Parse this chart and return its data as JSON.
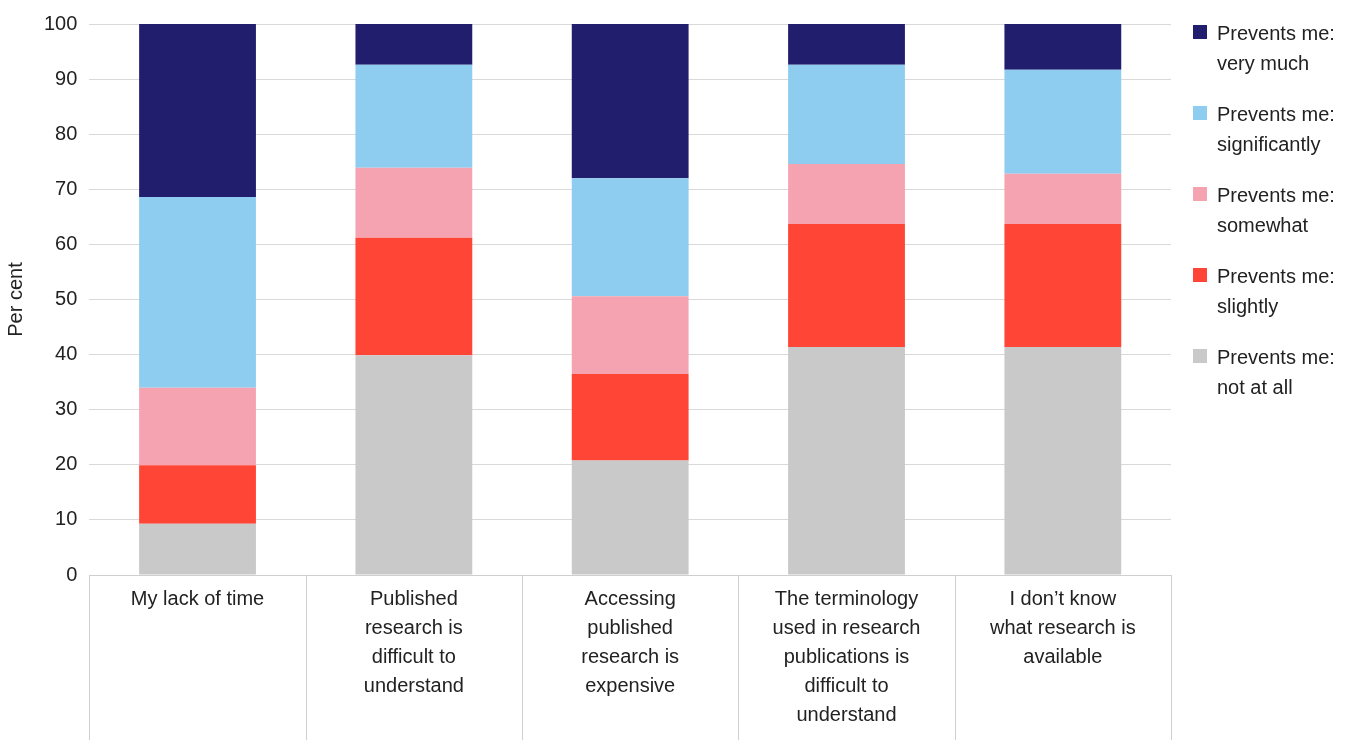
{
  "chart_data": {
    "type": "bar",
    "stacked": true,
    "ylabel": "Per cent",
    "categories": [
      "My lack of time",
      "Published research is difficult to understand",
      "Accessing published research is expensive",
      "The terminology used in research publications is difficult to understand",
      "I don’t know what research is available"
    ],
    "series": [
      {
        "name": "Prevents me: not at all",
        "color": "#c8c9c8",
        "values": [
          9.3,
          39.9,
          20.8,
          41.4,
          41.4
        ]
      },
      {
        "name": "Prevents me: slightly",
        "color": "#ff4535",
        "values": [
          10.6,
          21.3,
          15.7,
          22.3,
          22.3
        ]
      },
      {
        "name": "Prevents me: somewhat",
        "color": "#f5a3b1",
        "values": [
          14.1,
          12.7,
          14.1,
          10.9,
          9.1
        ]
      },
      {
        "name": "Prevents me: significantly",
        "color": "#8ecdf0",
        "values": [
          34.6,
          18.7,
          21.4,
          18.0,
          18.9
        ]
      },
      {
        "name": "Prevents me: very much",
        "color": "#221e6e",
        "values": [
          31.4,
          7.4,
          28.0,
          7.4,
          8.3
        ]
      }
    ],
    "ylim": [
      0,
      100
    ],
    "yticks": [
      0,
      10,
      20,
      30,
      40,
      50,
      60,
      70,
      80,
      90,
      100
    ],
    "grid": "y",
    "legend": "right"
  }
}
